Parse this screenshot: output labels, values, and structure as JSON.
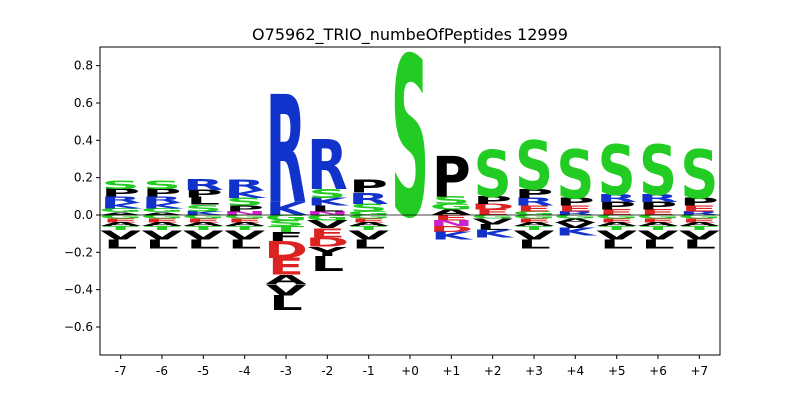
{
  "chart_data": {
    "type": "sequence-logo",
    "title": "O75962_TRIO_numbeOfPeptides 12999",
    "xlabel": "",
    "ylabel": "",
    "ylim": [
      -0.75,
      0.9
    ],
    "yticks": [
      "0.8",
      "0.6",
      "0.4",
      "0.2",
      "0.0",
      "−0.2",
      "−0.4",
      "−0.6"
    ],
    "ytick_values": [
      0.8,
      0.6,
      0.4,
      0.2,
      0.0,
      -0.2,
      -0.4,
      -0.6
    ],
    "categories": [
      "-7",
      "-6",
      "-5",
      "-4",
      "-3",
      "-2",
      "-1",
      "+0",
      "+1",
      "+2",
      "+3",
      "+4",
      "+5",
      "+6",
      "+7"
    ],
    "colors": {
      "S": "#22cc22",
      "T": "#22cc22",
      "G": "#22cc22",
      "C": "#22cc22",
      "P": "#000000",
      "L": "#000000",
      "V": "#000000",
      "A": "#000000",
      "F": "#000000",
      "M": "#000000",
      "W": "#000000",
      "I": "#000000",
      "R": "#1133cc",
      "K": "#1133cc",
      "H": "#1133cc",
      "D": "#dd2222",
      "E": "#dd2222",
      "N": "#cc22cc",
      "Q": "#cc22cc",
      "Y": "#000000"
    },
    "positions": [
      {
        "label": "-7",
        "positive": [
          [
            "S",
            0.045
          ],
          [
            "P",
            0.04
          ],
          [
            "R",
            0.035
          ],
          [
            "K",
            0.03
          ],
          [
            "G",
            0.02
          ],
          [
            "A",
            0.015
          ]
        ],
        "negative": [
          [
            "G",
            0.02
          ],
          [
            "E",
            0.02
          ],
          [
            "A",
            0.02
          ],
          [
            "T",
            0.02
          ],
          [
            "V",
            0.05
          ],
          [
            "L",
            0.05
          ]
        ]
      },
      {
        "label": "-6",
        "positive": [
          [
            "S",
            0.045
          ],
          [
            "P",
            0.04
          ],
          [
            "R",
            0.035
          ],
          [
            "K",
            0.03
          ],
          [
            "G",
            0.02
          ],
          [
            "A",
            0.015
          ]
        ],
        "negative": [
          [
            "G",
            0.02
          ],
          [
            "E",
            0.02
          ],
          [
            "A",
            0.02
          ],
          [
            "T",
            0.02
          ],
          [
            "V",
            0.05
          ],
          [
            "L",
            0.05
          ]
        ]
      },
      {
        "label": "-5",
        "positive": [
          [
            "R",
            0.06
          ],
          [
            "L",
            0.04
          ],
          [
            "P",
            0.04
          ],
          [
            "S",
            0.035
          ],
          [
            "K",
            0.02
          ]
        ],
        "negative": [
          [
            "G",
            0.02
          ],
          [
            "E",
            0.02
          ],
          [
            "A",
            0.02
          ],
          [
            "T",
            0.02
          ],
          [
            "V",
            0.05
          ],
          [
            "L",
            0.05
          ]
        ]
      },
      {
        "label": "-4",
        "positive": [
          [
            "R",
            0.06
          ],
          [
            "S",
            0.04
          ],
          [
            "K",
            0.04
          ],
          [
            "P",
            0.03
          ],
          [
            "N",
            0.02
          ]
        ],
        "negative": [
          [
            "G",
            0.02
          ],
          [
            "E",
            0.02
          ],
          [
            "A",
            0.02
          ],
          [
            "T",
            0.02
          ],
          [
            "V",
            0.05
          ],
          [
            "L",
            0.05
          ]
        ]
      },
      {
        "label": "-3",
        "positive": [
          [
            "R",
            0.58
          ],
          [
            "K",
            0.07
          ]
        ],
        "negative": [
          [
            "G",
            0.03
          ],
          [
            "S",
            0.03
          ],
          [
            "T",
            0.03
          ],
          [
            "F",
            0.05
          ],
          [
            "D",
            0.09
          ],
          [
            "E",
            0.09
          ],
          [
            "A",
            0.05
          ],
          [
            "V",
            0.06
          ],
          [
            "L",
            0.08
          ]
        ]
      },
      {
        "label": "-2",
        "positive": [
          [
            "R",
            0.27
          ],
          [
            "S",
            0.05
          ],
          [
            "K",
            0.04
          ],
          [
            "L",
            0.03
          ],
          [
            "N",
            0.02
          ]
        ],
        "negative": [
          [
            "G",
            0.03
          ],
          [
            "V",
            0.04
          ],
          [
            "E",
            0.05
          ],
          [
            "D",
            0.05
          ],
          [
            "Y",
            0.05
          ],
          [
            "L",
            0.08
          ]
        ]
      },
      {
        "label": "-1",
        "positive": [
          [
            "P",
            0.07
          ],
          [
            "R",
            0.06
          ],
          [
            "S",
            0.04
          ],
          [
            "G",
            0.02
          ]
        ],
        "negative": [
          [
            "G",
            0.02
          ],
          [
            "E",
            0.02
          ],
          [
            "A",
            0.02
          ],
          [
            "T",
            0.02
          ],
          [
            "V",
            0.05
          ],
          [
            "L",
            0.05
          ]
        ]
      },
      {
        "label": "+0",
        "positive": [
          [
            "S",
            0.86
          ]
        ],
        "negative": []
      },
      {
        "label": "+1",
        "positive": [
          [
            "P",
            0.22
          ],
          [
            "S",
            0.04
          ],
          [
            "A",
            0.03
          ],
          [
            "G",
            0.03
          ]
        ],
        "negative": [
          [
            "E",
            0.03
          ],
          [
            "N",
            0.03
          ],
          [
            "D",
            0.03
          ],
          [
            "K",
            0.04
          ]
        ]
      },
      {
        "label": "+2",
        "positive": [
          [
            "S",
            0.25
          ],
          [
            "P",
            0.04
          ],
          [
            "E",
            0.03
          ],
          [
            "D",
            0.03
          ]
        ],
        "negative": [
          [
            "G",
            0.02
          ],
          [
            "V",
            0.03
          ],
          [
            "L",
            0.03
          ],
          [
            "K",
            0.04
          ]
        ]
      },
      {
        "label": "+3",
        "positive": [
          [
            "S",
            0.26
          ],
          [
            "P",
            0.05
          ],
          [
            "R",
            0.04
          ],
          [
            "E",
            0.03
          ],
          [
            "G",
            0.02
          ]
        ],
        "negative": [
          [
            "G",
            0.02
          ],
          [
            "E",
            0.02
          ],
          [
            "A",
            0.02
          ],
          [
            "T",
            0.02
          ],
          [
            "V",
            0.05
          ],
          [
            "L",
            0.05
          ]
        ]
      },
      {
        "label": "+4",
        "positive": [
          [
            "S",
            0.26
          ],
          [
            "P",
            0.04
          ],
          [
            "E",
            0.03
          ],
          [
            "R",
            0.02
          ]
        ],
        "negative": [
          [
            "G",
            0.02
          ],
          [
            "A",
            0.02
          ],
          [
            "V",
            0.03
          ],
          [
            "K",
            0.04
          ]
        ]
      },
      {
        "label": "+5",
        "positive": [
          [
            "S",
            0.27
          ],
          [
            "P",
            0.04
          ],
          [
            "R",
            0.04
          ],
          [
            "E",
            0.03
          ]
        ],
        "negative": [
          [
            "G",
            0.02
          ],
          [
            "E",
            0.02
          ],
          [
            "A",
            0.02
          ],
          [
            "T",
            0.02
          ],
          [
            "V",
            0.05
          ],
          [
            "L",
            0.05
          ]
        ]
      },
      {
        "label": "+6",
        "positive": [
          [
            "S",
            0.27
          ],
          [
            "P",
            0.04
          ],
          [
            "R",
            0.04
          ],
          [
            "E",
            0.03
          ]
        ],
        "negative": [
          [
            "G",
            0.02
          ],
          [
            "E",
            0.02
          ],
          [
            "A",
            0.02
          ],
          [
            "T",
            0.02
          ],
          [
            "V",
            0.05
          ],
          [
            "L",
            0.05
          ]
        ]
      },
      {
        "label": "+7",
        "positive": [
          [
            "S",
            0.26
          ],
          [
            "P",
            0.04
          ],
          [
            "E",
            0.03
          ],
          [
            "R",
            0.02
          ]
        ],
        "negative": [
          [
            "G",
            0.02
          ],
          [
            "E",
            0.02
          ],
          [
            "A",
            0.02
          ],
          [
            "T",
            0.02
          ],
          [
            "V",
            0.05
          ],
          [
            "L",
            0.05
          ]
        ]
      }
    ]
  }
}
